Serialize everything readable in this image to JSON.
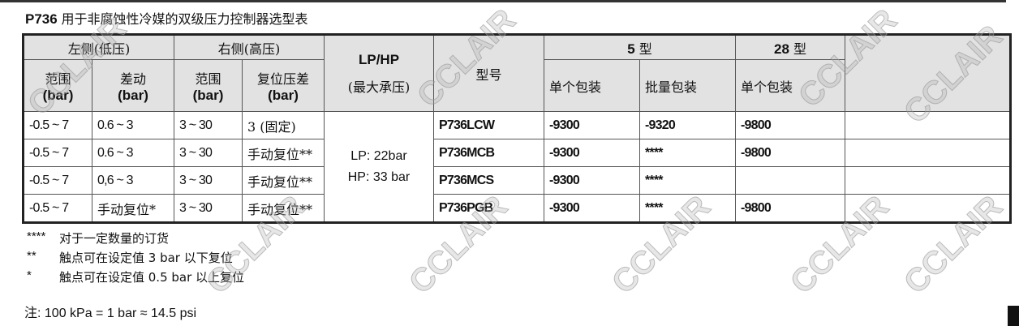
{
  "title": {
    "code": "P736",
    "text": "用于非腐蚀性冷媒的双级压力控制器选型表"
  },
  "header": {
    "left_group": "左侧(低压)",
    "right_group": "右侧(高压)",
    "lphp": "LP/HP",
    "lphp_sub": "(最大承压)",
    "model": "型号",
    "type5": {
      "num": "5",
      "label": "型"
    },
    "type28": {
      "num": "28",
      "label": "型"
    },
    "range": "范围",
    "diff": "差动",
    "reset_diff": "复位压差",
    "unit": "(bar)",
    "single_pack": "单个包装",
    "bulk_pack": "批量包装"
  },
  "rows": [
    {
      "lp_range": "-0.5 ~ 7",
      "lp_diff": "0.6 ~ 3",
      "hp_range": "3 ~ 30",
      "hp_reset": "3 (固定)",
      "model": "P736LCW",
      "t5_single": "-9300",
      "t5_bulk": "-9320",
      "t28_single": "-9800"
    },
    {
      "lp_range": "-0.5 ~ 7",
      "lp_diff": "0.6 ~ 3",
      "hp_range": "3 ~ 30",
      "hp_reset": "手动复位**",
      "model": "P736MCB",
      "t5_single": "-9300",
      "t5_bulk": "****",
      "t28_single": "-9800"
    },
    {
      "lp_range": "-0.5 ~ 7",
      "lp_diff": "0,6 ~ 3",
      "hp_range": "3 ~ 30",
      "hp_reset": "手动复位**",
      "model": "P736MCS",
      "t5_single": "-9300",
      "t5_bulk": "****",
      "t28_single": ""
    },
    {
      "lp_range": "-0.5 ~ 7",
      "lp_diff": "手动复位*",
      "hp_range": "3 ~ 30",
      "hp_reset": "手动复位**",
      "model": "P736PGB",
      "t5_single": "-9300",
      "t5_bulk": "****",
      "t28_single": "-9800"
    }
  ],
  "max_pressure": {
    "lp": "LP: 22bar",
    "hp": "HP: 33 bar"
  },
  "notes": [
    {
      "mark": "****",
      "text": "对于一定数量的订货"
    },
    {
      "mark": "**",
      "text": "触点可在设定值 3 bar 以下复位"
    },
    {
      "mark": "*",
      "text": "触点可在设定值 0.5 bar 以上复位"
    }
  ],
  "footer": "注: 100 kPa = 1 bar ≈ 14.5 psi",
  "watermark": "CCLAIR"
}
